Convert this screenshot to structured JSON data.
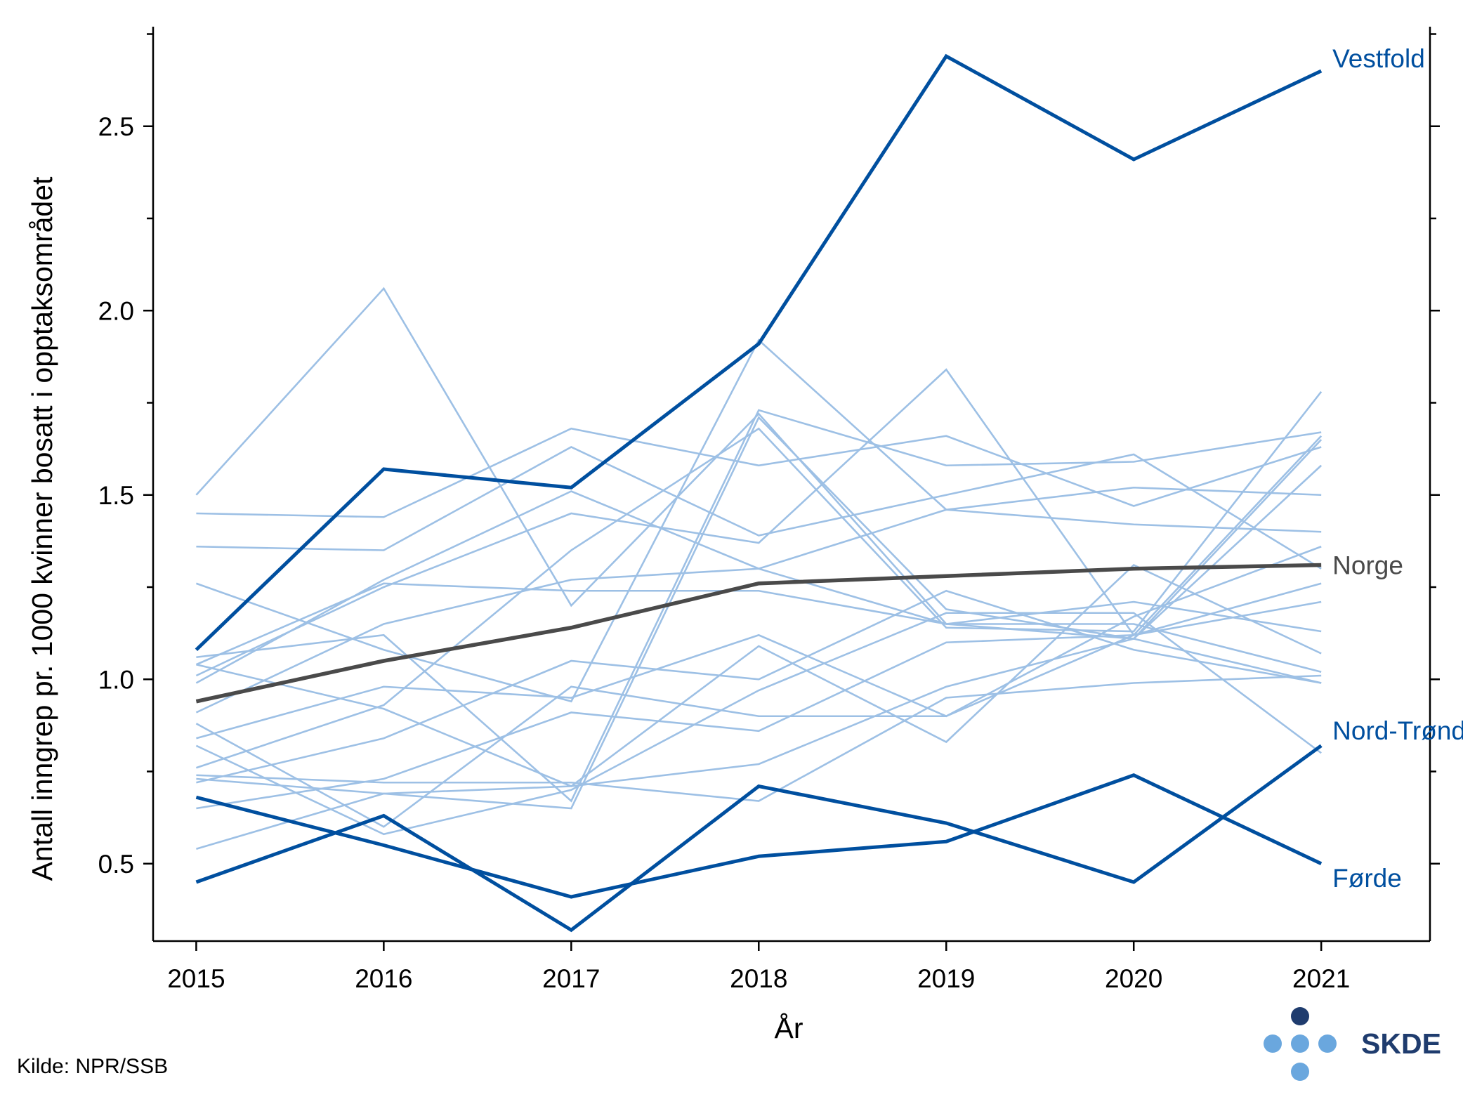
{
  "chart_data": {
    "type": "line",
    "x": [
      2015,
      2016,
      2017,
      2018,
      2019,
      2020,
      2021
    ],
    "xlabel": "År",
    "ylabel": "Antall inngrep pr. 1000 kvinner bosatt i opptaksområdet",
    "ylim": [
      0.29,
      2.77
    ],
    "xlim": [
      2014.77,
      2021.58
    ],
    "yticks_major": [
      "0.5",
      "1.0",
      "1.5",
      "2.0",
      "2.5"
    ],
    "grid": false,
    "colors": {
      "background": "#9dc0e5",
      "highlight": "#004f9f",
      "norway": "#4a4a4a",
      "logo_dark": "#1f3c6e",
      "logo_light": "#6aa7de"
    },
    "series": [
      {
        "name": "Vestfold",
        "role": "highlight",
        "values": [
          1.08,
          1.57,
          1.52,
          1.91,
          2.69,
          2.41,
          2.65
        ]
      },
      {
        "name": "Norge",
        "role": "norway",
        "values": [
          0.94,
          1.05,
          1.14,
          1.26,
          1.28,
          1.3,
          1.31
        ]
      },
      {
        "name": "Nord-Trøndelag",
        "role": "highlight",
        "values": [
          0.45,
          0.63,
          0.32,
          0.71,
          0.61,
          0.45,
          0.82
        ]
      },
      {
        "name": "Førde",
        "role": "highlight",
        "values": [
          0.68,
          0.55,
          0.41,
          0.52,
          0.56,
          0.74,
          0.5
        ]
      },
      {
        "values": [
          1.5,
          2.06,
          1.2,
          1.72,
          1.15,
          1.15,
          1.02
        ]
      },
      {
        "values": [
          1.45,
          1.44,
          1.68,
          1.58,
          1.66,
          1.47,
          1.63
        ]
      },
      {
        "values": [
          1.36,
          1.35,
          1.63,
          1.39,
          1.5,
          1.61,
          1.3
        ]
      },
      {
        "values": [
          1.26,
          1.08,
          0.94,
          1.92,
          1.46,
          1.52,
          1.5
        ]
      },
      {
        "values": [
          1.06,
          1.12,
          0.67,
          1.73,
          1.58,
          1.59,
          1.67
        ]
      },
      {
        "values": [
          1.01,
          1.25,
          1.45,
          1.37,
          1.84,
          1.12,
          1.66
        ]
      },
      {
        "values": [
          0.99,
          1.27,
          1.51,
          1.3,
          1.46,
          1.42,
          1.4
        ]
      },
      {
        "values": [
          1.04,
          0.92,
          0.71,
          1.09,
          0.83,
          1.31,
          1.07
        ]
      },
      {
        "values": [
          0.91,
          1.15,
          1.27,
          1.3,
          1.15,
          1.21,
          1.13
        ]
      },
      {
        "values": [
          0.84,
          0.98,
          0.95,
          1.12,
          0.9,
          1.17,
          1.36
        ]
      },
      {
        "values": [
          0.72,
          0.84,
          1.05,
          1.0,
          1.24,
          1.08,
          0.99
        ]
      },
      {
        "values": [
          0.76,
          0.93,
          1.35,
          1.68,
          1.14,
          1.13,
          1.78
        ]
      },
      {
        "values": [
          0.88,
          0.6,
          0.98,
          0.9,
          0.9,
          1.12,
          1.26
        ]
      },
      {
        "values": [
          0.82,
          0.58,
          0.7,
          0.97,
          1.18,
          1.18,
          0.8
        ]
      },
      {
        "values": [
          0.65,
          0.73,
          0.91,
          0.86,
          1.1,
          1.12,
          1.21
        ]
      },
      {
        "values": [
          0.54,
          0.69,
          0.65,
          1.71,
          1.19,
          1.11,
          1.58
        ]
      },
      {
        "values": [
          0.74,
          0.72,
          0.72,
          0.67,
          0.95,
          0.99,
          1.01
        ]
      },
      {
        "values": [
          1.04,
          1.26,
          1.24,
          1.24,
          1.15,
          1.11,
          0.99
        ]
      },
      {
        "values": [
          0.73,
          0.69,
          0.71,
          0.77,
          0.98,
          1.11,
          1.65
        ]
      }
    ]
  },
  "source": "Kilde: NPR/SSB",
  "logo_text": "SKDE"
}
